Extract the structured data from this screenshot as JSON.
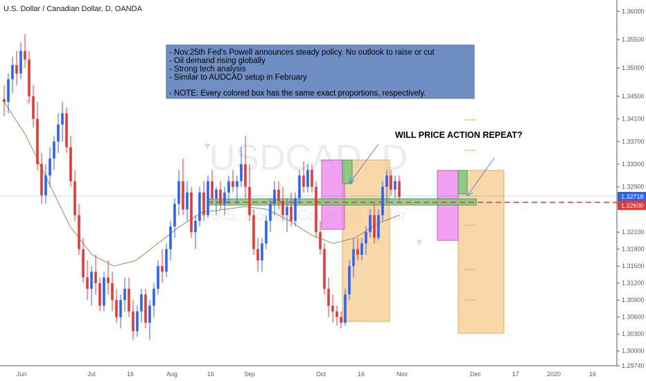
{
  "header": {
    "title": "U.S. Dollar / Canadian Dollar, D, OANDA"
  },
  "watermark": {
    "symbol": "USDCAD, D",
    "name": "U.S. Dollar / Canadian Dollar"
  },
  "note": {
    "lines": [
      "- Nov.25th Fed's Powell announces steady policy. No outlook to raise or cut",
      "- Oil demand rising globally",
      "- Strong tech analysis",
      "- Similar to AUDCAD setup in February",
      "",
      "- NOTE: Every colored box has the same exact proportions, respectively."
    ]
  },
  "headline": "WILL PRICE ACTION REPEAT?",
  "price_tags": {
    "last": "1.32718",
    "level": "1.32600"
  },
  "colors": {
    "up": "#2962ff",
    "down": "#e53935",
    "ma": "#8c8f5a",
    "note_bg": "#6f8fc4",
    "orange_box": "#f5c98c",
    "magenta_box": "#ee82ee",
    "green_box": "#7ec87e",
    "level_line": "#e53935"
  },
  "chart_data": {
    "type": "candlestick",
    "title": "U.S. Dollar / Canadian Dollar, D, OANDA",
    "symbol": "USDCAD",
    "timeframe": "D",
    "y_axis_ticks": [
      "1.36000",
      "1.35500",
      "1.35000",
      "1.34500",
      "1.34100",
      "1.33700",
      "1.33300",
      "1.32900",
      "1.32600",
      "1.32100",
      "1.31800",
      "1.31500",
      "1.31200",
      "1.30900",
      "1.30600",
      "1.30300",
      "1.30000",
      "1.29740"
    ],
    "x_axis_ticks": [
      "Jun",
      "Jul",
      "16",
      "Aug",
      "16",
      "Sep",
      "Oct",
      "16",
      "Nov",
      "Dec",
      "17",
      "2020",
      "16"
    ],
    "ylim": [
      1.2974,
      1.362
    ],
    "current_price": 1.32718,
    "horizontal_level": 1.326,
    "annotations": [
      "WILL PRICE ACTION REPEAT?"
    ],
    "series": [
      {
        "name": "USDCAD",
        "ohlc": [
          [
            1.3445,
            1.347,
            1.3415,
            1.344
          ],
          [
            1.344,
            1.349,
            1.342,
            1.348
          ],
          [
            1.348,
            1.352,
            1.3455,
            1.3505
          ],
          [
            1.3505,
            1.353,
            1.347,
            1.349
          ],
          [
            1.349,
            1.3545,
            1.348,
            1.353
          ],
          [
            1.353,
            1.356,
            1.35,
            1.3515
          ],
          [
            1.3515,
            1.353,
            1.344,
            1.345
          ],
          [
            1.345,
            1.347,
            1.3395,
            1.341
          ],
          [
            1.341,
            1.344,
            1.332,
            1.333
          ],
          [
            1.333,
            1.335,
            1.326,
            1.3275
          ],
          [
            1.3275,
            1.333,
            1.326,
            1.331
          ],
          [
            1.331,
            1.336,
            1.329,
            1.334
          ],
          [
            1.334,
            1.338,
            1.332,
            1.337
          ],
          [
            1.337,
            1.342,
            1.335,
            1.34
          ],
          [
            1.34,
            1.344,
            1.337,
            1.342
          ],
          [
            1.342,
            1.343,
            1.335,
            1.336
          ],
          [
            1.336,
            1.338,
            1.329,
            1.33
          ],
          [
            1.33,
            1.332,
            1.323,
            1.324
          ],
          [
            1.324,
            1.326,
            1.317,
            1.318
          ],
          [
            1.318,
            1.32,
            1.312,
            1.313
          ],
          [
            1.313,
            1.316,
            1.309,
            1.311
          ],
          [
            1.311,
            1.315,
            1.308,
            1.314
          ],
          [
            1.314,
            1.317,
            1.31,
            1.312
          ],
          [
            1.312,
            1.313,
            1.307,
            1.308
          ],
          [
            1.308,
            1.314,
            1.307,
            1.313
          ],
          [
            1.313,
            1.316,
            1.31,
            1.312
          ],
          [
            1.312,
            1.314,
            1.307,
            1.309
          ],
          [
            1.309,
            1.311,
            1.305,
            1.306
          ],
          [
            1.306,
            1.31,
            1.304,
            1.309
          ],
          [
            1.309,
            1.313,
            1.307,
            1.311
          ],
          [
            1.311,
            1.313,
            1.306,
            1.307
          ],
          [
            1.307,
            1.309,
            1.302,
            1.3035
          ],
          [
            1.3035,
            1.308,
            1.3025,
            1.307
          ],
          [
            1.307,
            1.311,
            1.305,
            1.31
          ],
          [
            1.31,
            1.311,
            1.304,
            1.305
          ],
          [
            1.305,
            1.309,
            1.302,
            1.308
          ],
          [
            1.308,
            1.312,
            1.306,
            1.311
          ],
          [
            1.311,
            1.316,
            1.31,
            1.315
          ],
          [
            1.315,
            1.318,
            1.312,
            1.314
          ],
          [
            1.314,
            1.319,
            1.313,
            1.318
          ],
          [
            1.318,
            1.323,
            1.316,
            1.322
          ],
          [
            1.322,
            1.327,
            1.32,
            1.326
          ],
          [
            1.326,
            1.332,
            1.324,
            1.33
          ],
          [
            1.33,
            1.334,
            1.324,
            1.325
          ],
          [
            1.325,
            1.33,
            1.323,
            1.328
          ],
          [
            1.328,
            1.329,
            1.32,
            1.321
          ],
          [
            1.321,
            1.324,
            1.318,
            1.323
          ],
          [
            1.323,
            1.329,
            1.322,
            1.328
          ],
          [
            1.328,
            1.33,
            1.323,
            1.324
          ],
          [
            1.324,
            1.331,
            1.3235,
            1.33
          ],
          [
            1.33,
            1.332,
            1.326,
            1.327
          ],
          [
            1.327,
            1.329,
            1.324,
            1.3285
          ],
          [
            1.3285,
            1.33,
            1.325,
            1.326
          ],
          [
            1.326,
            1.329,
            1.324,
            1.328
          ],
          [
            1.328,
            1.331,
            1.326,
            1.33
          ],
          [
            1.33,
            1.332,
            1.328,
            1.329
          ],
          [
            1.329,
            1.331,
            1.326,
            1.33
          ],
          [
            1.33,
            1.336,
            1.329,
            1.333
          ],
          [
            1.333,
            1.338,
            1.327,
            1.329
          ],
          [
            1.329,
            1.333,
            1.323,
            1.324
          ],
          [
            1.324,
            1.325,
            1.317,
            1.318
          ],
          [
            1.318,
            1.32,
            1.314,
            1.316
          ],
          [
            1.316,
            1.32,
            1.314,
            1.319
          ],
          [
            1.319,
            1.324,
            1.318,
            1.323
          ],
          [
            1.323,
            1.327,
            1.321,
            1.326
          ],
          [
            1.326,
            1.33,
            1.324,
            1.3285
          ],
          [
            1.3285,
            1.33,
            1.325,
            1.3265
          ],
          [
            1.3265,
            1.329,
            1.323,
            1.324
          ],
          [
            1.324,
            1.327,
            1.321,
            1.3255
          ],
          [
            1.3255,
            1.328,
            1.322,
            1.323
          ],
          [
            1.323,
            1.328,
            1.322,
            1.327
          ],
          [
            1.327,
            1.332,
            1.326,
            1.331
          ],
          [
            1.331,
            1.3335,
            1.328,
            1.329
          ],
          [
            1.329,
            1.333,
            1.328,
            1.332
          ],
          [
            1.332,
            1.333,
            1.328,
            1.329
          ],
          [
            1.329,
            1.33,
            1.32,
            1.321
          ],
          [
            1.321,
            1.323,
            1.317,
            1.318
          ],
          [
            1.318,
            1.319,
            1.31,
            1.311
          ],
          [
            1.311,
            1.313,
            1.306,
            1.308
          ],
          [
            1.308,
            1.31,
            1.305,
            1.307
          ],
          [
            1.307,
            1.308,
            1.3045,
            1.306
          ],
          [
            1.306,
            1.307,
            1.304,
            1.305
          ],
          [
            1.305,
            1.311,
            1.3045,
            1.31
          ],
          [
            1.31,
            1.316,
            1.309,
            1.315
          ],
          [
            1.315,
            1.32,
            1.313,
            1.318
          ],
          [
            1.318,
            1.32,
            1.316,
            1.317
          ],
          [
            1.317,
            1.32,
            1.316,
            1.319
          ],
          [
            1.319,
            1.322,
            1.317,
            1.321
          ],
          [
            1.321,
            1.325,
            1.32,
            1.324
          ],
          [
            1.324,
            1.326,
            1.319,
            1.32
          ],
          [
            1.32,
            1.325,
            1.3195,
            1.324
          ],
          [
            1.324,
            1.33,
            1.323,
            1.329
          ],
          [
            1.329,
            1.332,
            1.326,
            1.331
          ],
          [
            1.331,
            1.332,
            1.3275,
            1.3285
          ],
          [
            1.3285,
            1.331,
            1.327,
            1.33
          ],
          [
            1.33,
            1.331,
            1.3265,
            1.3272
          ]
        ]
      },
      {
        "name": "MA",
        "values": [
          1.344,
          1.338,
          1.33,
          1.322,
          1.317,
          1.315,
          1.316,
          1.319,
          1.322,
          1.3245,
          1.325,
          1.3255,
          1.325,
          1.323,
          1.3205,
          1.319,
          1.32,
          1.3225,
          1.324
        ]
      }
    ]
  }
}
